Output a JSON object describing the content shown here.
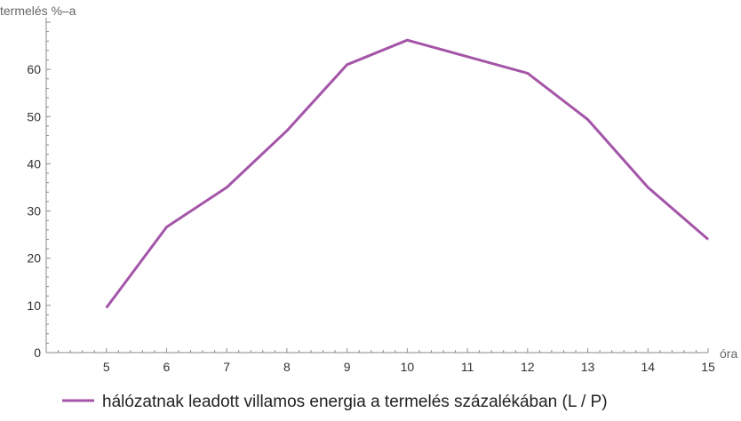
{
  "chart_data": {
    "type": "line",
    "xlabel": "óra",
    "ylabel": "termelés %–a",
    "xlim": [
      4,
      15
    ],
    "ylim": [
      0,
      70
    ],
    "x_ticks": [
      5,
      6,
      7,
      8,
      9,
      10,
      11,
      12,
      13,
      14,
      15
    ],
    "y_ticks": [
      0,
      10,
      20,
      30,
      40,
      50,
      60
    ],
    "grid": false,
    "legend_position": "bottom",
    "series": [
      {
        "name": "hálózatnak leadott villamos energia a termelés százalékában (L / P)",
        "color": "#a455a8",
        "x": [
          5,
          6,
          7,
          8,
          9,
          10,
          11,
          12,
          13,
          14,
          15
        ],
        "y": [
          9.5,
          26.6,
          35,
          47,
          61,
          66.2,
          62.7,
          59.2,
          49.4,
          35,
          24
        ]
      }
    ]
  }
}
